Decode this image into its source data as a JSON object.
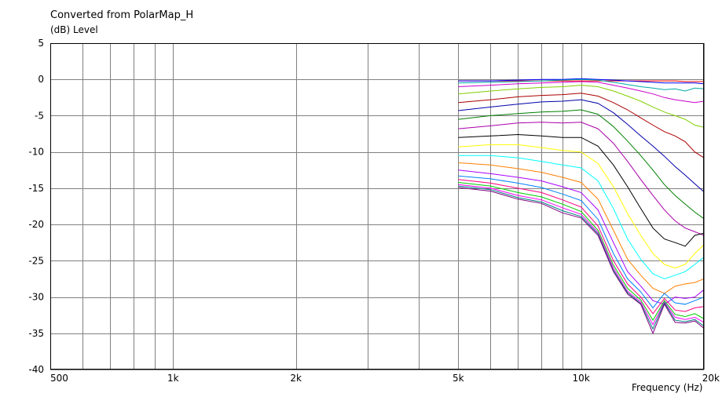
{
  "chart_data": {
    "type": "line",
    "title": "Converted from PolarMap_H",
    "ylabel": "(dB)  Level",
    "xlabel": "Frequency  (Hz)",
    "x_scale": "log",
    "xlim": [
      500,
      20000
    ],
    "ylim": [
      -40,
      5
    ],
    "grid": true,
    "y_ticks": [
      "5",
      "0",
      "-5",
      "-10",
      "-15",
      "-20",
      "-25",
      "-30",
      "-35",
      "-40"
    ],
    "y_tick_values": [
      5,
      0,
      -5,
      -10,
      -15,
      -20,
      -25,
      -30,
      -35,
      -40
    ],
    "x_ticks": [
      "500",
      "1k",
      "2k",
      "5k",
      "10k",
      "20k"
    ],
    "x_tick_values": [
      500,
      1000,
      2000,
      5000,
      10000,
      20000
    ],
    "x_grid_values": [
      500,
      600,
      700,
      800,
      900,
      1000,
      2000,
      3000,
      4000,
      5000,
      6000,
      7000,
      8000,
      9000,
      10000,
      20000
    ],
    "x": [
      5000,
      6000,
      7000,
      8000,
      9000,
      10000,
      11000,
      12000,
      13000,
      14000,
      15000,
      16000,
      17000,
      18000,
      19000,
      20000
    ],
    "series": [
      {
        "color": "#ff0000",
        "values": [
          -0.2,
          -0.2,
          -0.2,
          -0.2,
          -0.2,
          -0.2,
          -0.2,
          -0.2,
          -0.2,
          -0.2,
          -0.2,
          -0.2,
          -0.2,
          -0.3,
          -0.3,
          -0.3
        ]
      },
      {
        "color": "#0000ff",
        "values": [
          -0.2,
          -0.2,
          -0.1,
          0.0,
          0.0,
          0.1,
          0.0,
          -0.1,
          -0.2,
          -0.3,
          -0.4,
          -0.5,
          -0.5,
          -0.5,
          -0.5,
          -0.6
        ]
      },
      {
        "color": "#00aaaa",
        "values": [
          -0.5,
          -0.4,
          -0.3,
          -0.2,
          -0.1,
          0.0,
          -0.1,
          -0.4,
          -0.7,
          -1.0,
          -1.2,
          -1.4,
          -1.3,
          -1.6,
          -1.2,
          -1.3
        ]
      },
      {
        "color": "#cc00cc",
        "values": [
          -1.0,
          -0.8,
          -0.6,
          -0.5,
          -0.4,
          -0.3,
          -0.4,
          -0.8,
          -1.2,
          -1.6,
          -2.0,
          -2.5,
          -2.8,
          -3.0,
          -3.2,
          -3.0
        ]
      },
      {
        "color": "#80d000",
        "values": [
          -2.0,
          -1.6,
          -1.3,
          -1.1,
          -1.0,
          -0.8,
          -1.0,
          -1.6,
          -2.3,
          -3.0,
          -3.8,
          -4.5,
          -5.0,
          -5.5,
          -6.3,
          -6.6
        ]
      },
      {
        "color": "#aa0000",
        "values": [
          -3.2,
          -2.8,
          -2.4,
          -2.2,
          -2.1,
          -1.9,
          -2.3,
          -3.2,
          -4.2,
          -5.3,
          -6.3,
          -7.2,
          -7.8,
          -8.6,
          -10.0,
          -10.8
        ]
      },
      {
        "color": "#0000aa",
        "values": [
          -4.3,
          -3.8,
          -3.4,
          -3.1,
          -3.0,
          -2.8,
          -3.3,
          -4.6,
          -6.2,
          -7.8,
          -9.2,
          -10.6,
          -12.0,
          -13.2,
          -14.4,
          -15.5
        ]
      },
      {
        "color": "#008000",
        "values": [
          -5.5,
          -5.0,
          -4.7,
          -4.5,
          -4.4,
          -4.2,
          -4.8,
          -6.5,
          -8.5,
          -10.5,
          -12.5,
          -14.5,
          -16.0,
          -17.2,
          -18.3,
          -19.2
        ]
      },
      {
        "color": "#aa00aa",
        "values": [
          -6.8,
          -6.4,
          -6.0,
          -5.9,
          -6.0,
          -5.9,
          -6.8,
          -8.8,
          -11.3,
          -13.8,
          -16.0,
          -18.0,
          -19.5,
          -20.5,
          -21.0,
          -21.5
        ]
      },
      {
        "color": "#000000",
        "values": [
          -8.0,
          -7.8,
          -7.6,
          -7.8,
          -8.0,
          -8.0,
          -9.2,
          -11.8,
          -14.8,
          -17.8,
          -20.5,
          -22.0,
          -22.5,
          -23.0,
          -21.5,
          -21.2
        ]
      },
      {
        "color": "#ffff00",
        "values": [
          -9.3,
          -9.0,
          -9.0,
          -9.4,
          -9.8,
          -10.0,
          -11.6,
          -14.8,
          -18.5,
          -21.5,
          -24.0,
          -25.5,
          -26.0,
          -25.5,
          -24.0,
          -22.8
        ]
      },
      {
        "color": "#00ffff",
        "values": [
          -10.5,
          -10.5,
          -10.8,
          -11.3,
          -11.8,
          -12.2,
          -14.0,
          -17.8,
          -22.0,
          -24.8,
          -26.8,
          -27.5,
          -27.0,
          -26.5,
          -25.5,
          -24.5
        ]
      },
      {
        "color": "#ff8000",
        "values": [
          -11.5,
          -11.8,
          -12.3,
          -12.8,
          -13.5,
          -14.2,
          -16.5,
          -20.8,
          -24.8,
          -27.0,
          -28.8,
          -29.5,
          -28.5,
          -28.2,
          -28.0,
          -27.5
        ]
      },
      {
        "color": "#aa00ff",
        "values": [
          -12.5,
          -13.0,
          -13.5,
          -14.0,
          -14.8,
          -15.6,
          -18.0,
          -22.5,
          -26.5,
          -28.5,
          -30.5,
          -31.0,
          -30.0,
          -30.2,
          -30.0,
          -29.0
        ]
      },
      {
        "color": "#0080ff",
        "values": [
          -13.3,
          -13.7,
          -14.3,
          -14.9,
          -15.8,
          -16.7,
          -19.3,
          -24.0,
          -27.5,
          -29.3,
          -31.5,
          -29.5,
          -30.8,
          -31.0,
          -30.5,
          -30.0
        ]
      },
      {
        "color": "#ff0080",
        "values": [
          -13.8,
          -14.3,
          -15.0,
          -15.6,
          -16.6,
          -17.6,
          -20.2,
          -25.0,
          -28.2,
          -30.0,
          -32.3,
          -30.2,
          -31.8,
          -32.0,
          -31.5,
          -31.3
        ]
      },
      {
        "color": "#00cc00",
        "values": [
          -14.2,
          -14.7,
          -15.6,
          -16.2,
          -17.2,
          -18.2,
          -20.8,
          -25.6,
          -28.8,
          -30.4,
          -33.2,
          -30.5,
          -32.4,
          -32.7,
          -32.3,
          -33.0
        ]
      },
      {
        "color": "#ff00ff",
        "values": [
          -14.5,
          -15.0,
          -16.0,
          -16.6,
          -17.7,
          -18.6,
          -21.1,
          -26.0,
          -29.2,
          -30.7,
          -33.8,
          -30.7,
          -32.8,
          -33.1,
          -32.8,
          -33.5
        ]
      },
      {
        "color": "#008080",
        "values": [
          -14.7,
          -15.2,
          -16.3,
          -16.9,
          -18.1,
          -18.9,
          -21.3,
          -26.3,
          -29.4,
          -30.9,
          -34.4,
          -30.8,
          -33.2,
          -33.4,
          -33.1,
          -34.0
        ]
      },
      {
        "color": "#800080",
        "values": [
          -14.9,
          -15.4,
          -16.5,
          -17.1,
          -18.4,
          -19.1,
          -21.5,
          -26.5,
          -29.6,
          -31.0,
          -35.0,
          -31.0,
          -33.5,
          -33.6,
          -33.3,
          -34.3
        ]
      }
    ]
  }
}
